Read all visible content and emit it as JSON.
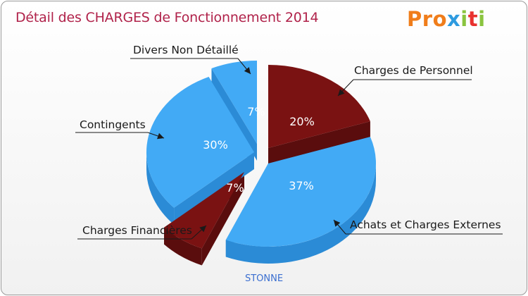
{
  "chart_data": {
    "type": "pie",
    "title": "Détail des CHARGES de Fonctionnement 2014",
    "location": "STONNE",
    "slices": [
      {
        "label": "Charges de Personnel",
        "value": 20,
        "color": "#7a1212",
        "side": "#5a0d0d"
      },
      {
        "label": "Achats et Charges Externes",
        "value": 37,
        "color": "#42aaf5",
        "side": "#2b8bd6"
      },
      {
        "label": "Charges Financières",
        "value": 7,
        "color": "#7a1212",
        "side": "#5a0d0d"
      },
      {
        "label": "Contingents",
        "value": 30,
        "color": "#42aaf5",
        "side": "#2b8bd6"
      },
      {
        "label": "Divers Non Détaillé",
        "value": 7,
        "color": "#42aaf5",
        "side": "#2b8bd6"
      }
    ],
    "value_suffix": "%"
  },
  "logo": {
    "text": "Proxiti",
    "letter_colors": [
      "#f07d1a",
      "#f07d1a",
      "#f07d1a",
      "#2e9be0",
      "#8ac43f",
      "#e8322f",
      "#8ac43f"
    ]
  }
}
